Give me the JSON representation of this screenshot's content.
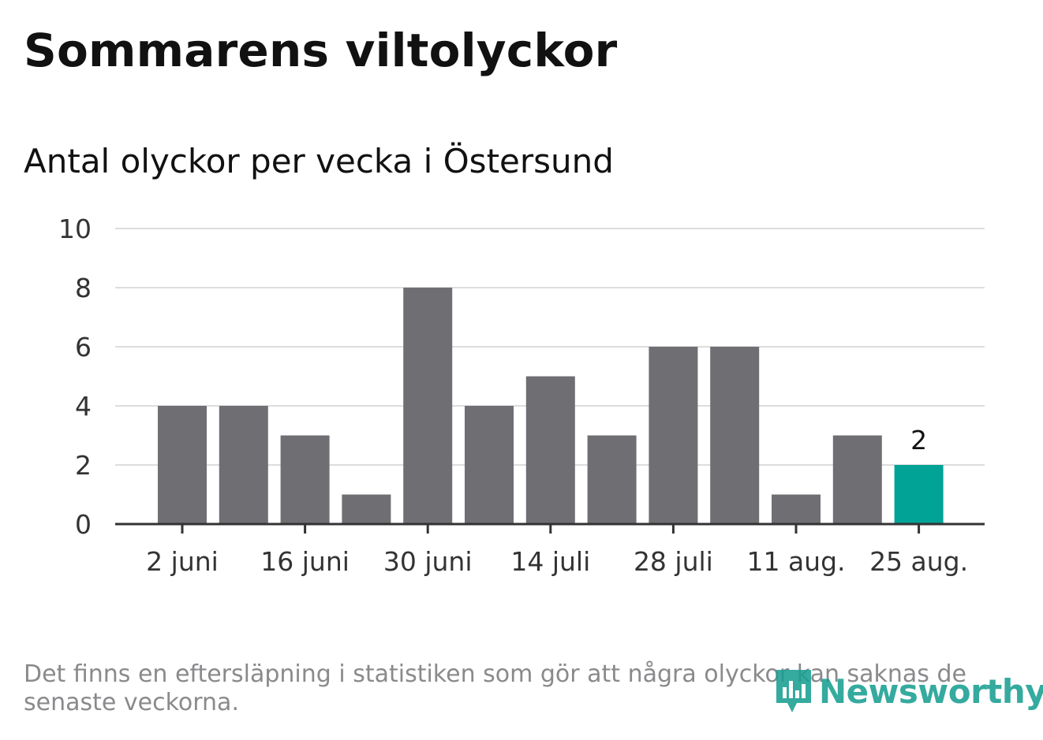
{
  "title": "Sommarens viltolyckor",
  "subtitle": "Antal olyckor per vecka i Östersund",
  "footnote": "Det finns en eftersläpning i statistiken som gör att några olyckor kan saknas de senaste veckorna.",
  "logo": {
    "text": "Newsworthy",
    "icon": "bar-chart-speech-bubble-icon"
  },
  "colors": {
    "bar": "#6f6e73",
    "highlight": "#00a396",
    "grid": "#dddddd",
    "axis": "#333333",
    "logo": "#1a9f92"
  },
  "chart_data": {
    "type": "bar",
    "title": "Antal olyckor per vecka i Östersund",
    "xlabel": "",
    "ylabel": "",
    "ylim": [
      0,
      10
    ],
    "yticks": [
      "0",
      "2",
      "4",
      "6",
      "8",
      "10"
    ],
    "xtick_labels": [
      "2 juni",
      "16 juni",
      "30 juni",
      "14 juli",
      "28 juli",
      "11 aug.",
      "25 aug."
    ],
    "values": [
      4,
      4,
      3,
      1,
      8,
      4,
      5,
      3,
      6,
      6,
      1,
      3,
      2
    ],
    "highlight_index": 12,
    "data_labels": [
      {
        "index": 12,
        "text": "2"
      }
    ],
    "grid": true
  }
}
